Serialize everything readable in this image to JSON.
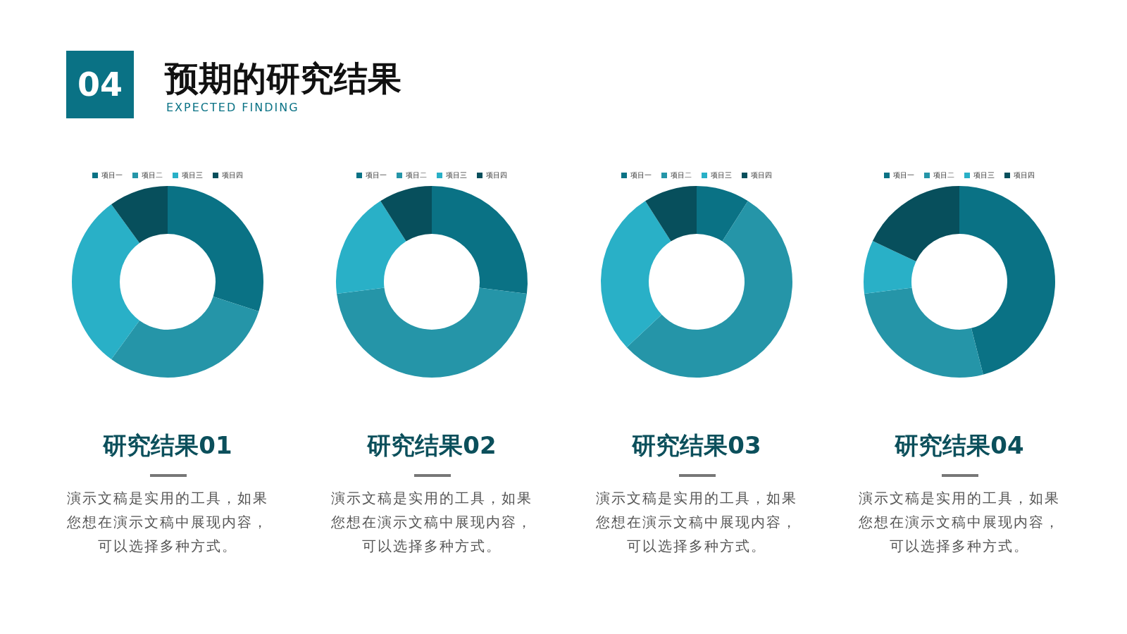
{
  "chart_data": [
    {
      "type": "other",
      "title": "预期的研究结果",
      "subtitle": "EXPECTED FINDING",
      "annotations": [
        "04"
      ]
    },
    {
      "type": "donut",
      "title": "研究结果01",
      "categories": [
        "项目一",
        "项目二",
        "项目三",
        "项目四"
      ],
      "values": [
        30,
        30,
        30,
        10
      ],
      "colors": [
        "#0a7285",
        "#2595a8",
        "#29b0c7",
        "#074f5c"
      ],
      "legend": "top",
      "annotations": [
        "演示文稿是实用的工具，如果您想在演示文稿中展现内容，可以选择多种方式。"
      ]
    },
    {
      "type": "donut",
      "title": "研究结果02",
      "categories": [
        "项目一",
        "项目二",
        "项目三",
        "项目四"
      ],
      "values": [
        27,
        46,
        18,
        9
      ],
      "colors": [
        "#0a7285",
        "#2595a8",
        "#29b0c7",
        "#074f5c"
      ],
      "legend": "top",
      "annotations": [
        "演示文稿是实用的工具，如果您想在演示文稿中展现内容，可以选择多种方式。"
      ]
    },
    {
      "type": "donut",
      "title": "研究结果03",
      "categories": [
        "项目一",
        "项目二",
        "项目三",
        "项目四"
      ],
      "values": [
        9,
        54,
        28,
        9
      ],
      "colors": [
        "#0a7285",
        "#2595a8",
        "#29b0c7",
        "#074f5c"
      ],
      "legend": "top",
      "annotations": [
        "演示文稿是实用的工具，如果您想在演示文稿中展现内容，可以选择多种方式。"
      ]
    },
    {
      "type": "donut",
      "title": "研究结果04",
      "categories": [
        "项目一",
        "项目二",
        "项目三",
        "项目四"
      ],
      "values": [
        46,
        27,
        9,
        18
      ],
      "colors": [
        "#0a7285",
        "#2595a8",
        "#29b0c7",
        "#074f5c"
      ],
      "legend": "top",
      "annotations": [
        "演示文稿是实用的工具，如果您想在演示文稿中展现内容，可以选择多种方式。"
      ]
    }
  ]
}
